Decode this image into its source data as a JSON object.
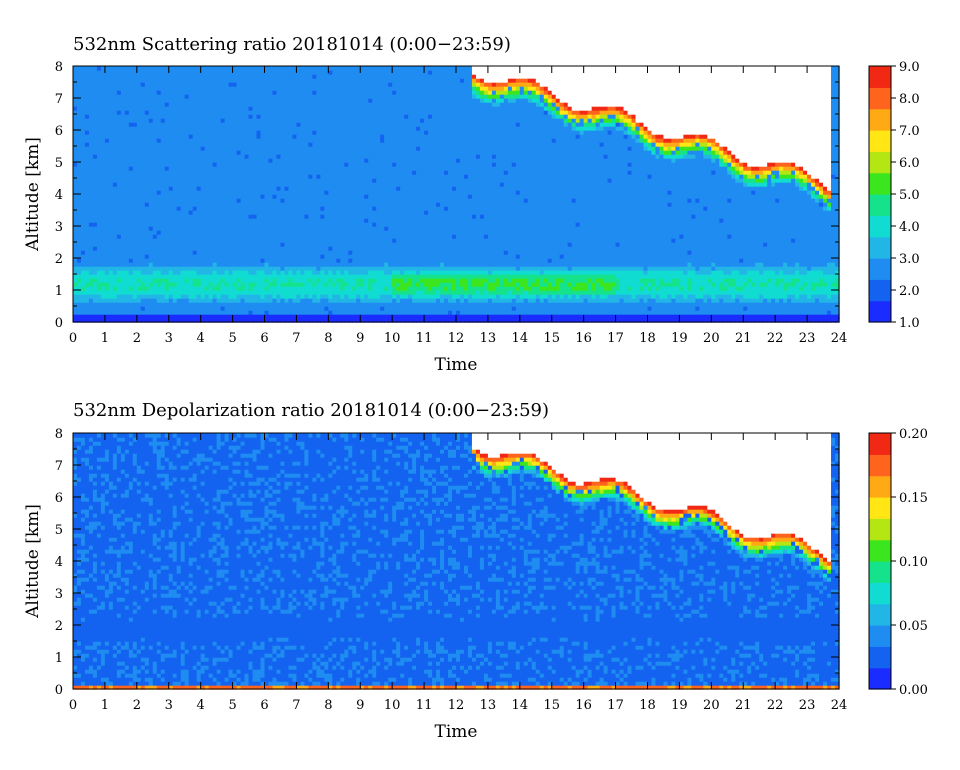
{
  "colormap": [
    "#1a2cff",
    "#1463f0",
    "#1e8cf0",
    "#22b6e6",
    "#10dcd2",
    "#15e38c",
    "#3ce61e",
    "#b4e614",
    "#ffe614",
    "#ffaa14",
    "#ff641e",
    "#f02814"
  ],
  "chart_data": [
    {
      "type": "heatmap",
      "title": "532nm Scattering ratio  20181014 (0:00−23:59)",
      "xlabel": "Time",
      "ylabel": "Altitude [km]",
      "xlim": [
        0,
        24
      ],
      "ylim": [
        0,
        8
      ],
      "x_ticks": [
        "0",
        "1",
        "2",
        "3",
        "4",
        "5",
        "6",
        "7",
        "8",
        "9",
        "10",
        "11",
        "12",
        "13",
        "14",
        "15",
        "16",
        "17",
        "18",
        "19",
        "20",
        "21",
        "22",
        "23",
        "24"
      ],
      "y_ticks": [
        "0",
        "1",
        "2",
        "3",
        "4",
        "5",
        "6",
        "7",
        "8"
      ],
      "colorbar": {
        "min": 1.0,
        "max": 9.0,
        "ticks": [
          "1.0",
          "2.0",
          "3.0",
          "4.0",
          "5.0",
          "6.0",
          "7.0",
          "8.0",
          "9.0"
        ]
      },
      "saturated_color": "#ffffff",
      "features": [
        {
          "kind": "background",
          "value": 2.6
        },
        {
          "kind": "layer",
          "from_time": 0,
          "to_time": 24,
          "alt_center": 1.2,
          "alt_thickness": 1.3,
          "peak_value": 4.3
        },
        {
          "kind": "layer",
          "from_time": 10,
          "to_time": 17,
          "alt_center": 1.2,
          "alt_thickness": 0.8,
          "peak_value": 5.1
        },
        {
          "kind": "surface",
          "alt_top": 0.3,
          "value": 1.2
        },
        {
          "kind": "cloud",
          "from_time": 12.5,
          "to_time": 23.8,
          "base_alt_start": 7.2,
          "base_alt_end": 3.6,
          "peak_value": 9.5
        }
      ]
    },
    {
      "type": "heatmap",
      "title": "532nm Depolarization ratio  20181014 (0:00−23:59)",
      "xlabel": "Time",
      "ylabel": "Altitude [km]",
      "xlim": [
        0,
        24
      ],
      "ylim": [
        0,
        8
      ],
      "x_ticks": [
        "0",
        "1",
        "2",
        "3",
        "4",
        "5",
        "6",
        "7",
        "8",
        "9",
        "10",
        "11",
        "12",
        "13",
        "14",
        "15",
        "16",
        "17",
        "18",
        "19",
        "20",
        "21",
        "22",
        "23",
        "24"
      ],
      "y_ticks": [
        "0",
        "1",
        "2",
        "3",
        "4",
        "5",
        "6",
        "7",
        "8"
      ],
      "colorbar": {
        "min": 0.0,
        "max": 0.2,
        "ticks": [
          "0.00",
          "0.05",
          "0.10",
          "0.15",
          "0.20"
        ]
      },
      "saturated_color": "#ffffff",
      "features": [
        {
          "kind": "background",
          "value": 0.03
        },
        {
          "kind": "layer",
          "from_time": 0,
          "to_time": 24,
          "alt_center": 1.9,
          "alt_thickness": 1.0,
          "peak_value": 0.025
        },
        {
          "kind": "surface",
          "alt_top": 0.15,
          "value": 0.17
        },
        {
          "kind": "cloud",
          "from_time": 12.5,
          "to_time": 23.8,
          "base_alt_start": 7.0,
          "base_alt_end": 3.5,
          "peak_value": 0.22
        }
      ]
    }
  ]
}
